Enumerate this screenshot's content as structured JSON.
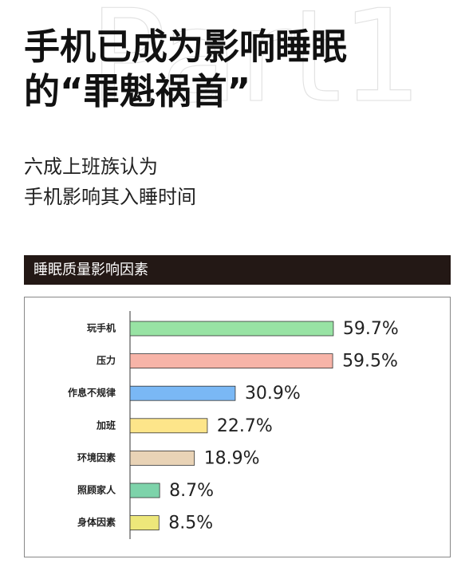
{
  "header": {
    "watermark": "Part1",
    "title_lines": [
      "手机已成为影响睡眠",
      "的“罪魁祸首”"
    ],
    "subtitle_lines": [
      "六成上班族认为",
      "手机影响其入睡时间"
    ]
  },
  "chart_data": {
    "type": "bar",
    "orientation": "horizontal",
    "title": "睡眠质量影响因素",
    "categories": [
      "玩手机",
      "压力",
      "作息不规律",
      "加班",
      "环境因素",
      "照顾家人",
      "身体因素"
    ],
    "values": [
      59.7,
      59.5,
      30.9,
      22.7,
      18.9,
      8.7,
      8.5
    ],
    "value_labels": [
      "59.7%",
      "59.5%",
      "30.9%",
      "22.7%",
      "18.9%",
      "8.7%",
      "8.5%"
    ],
    "colors": [
      "#98e3a4",
      "#f7b4a8",
      "#7ab8f5",
      "#fde58a",
      "#e9d3b6",
      "#7dd3aa",
      "#ede77a"
    ]
  }
}
